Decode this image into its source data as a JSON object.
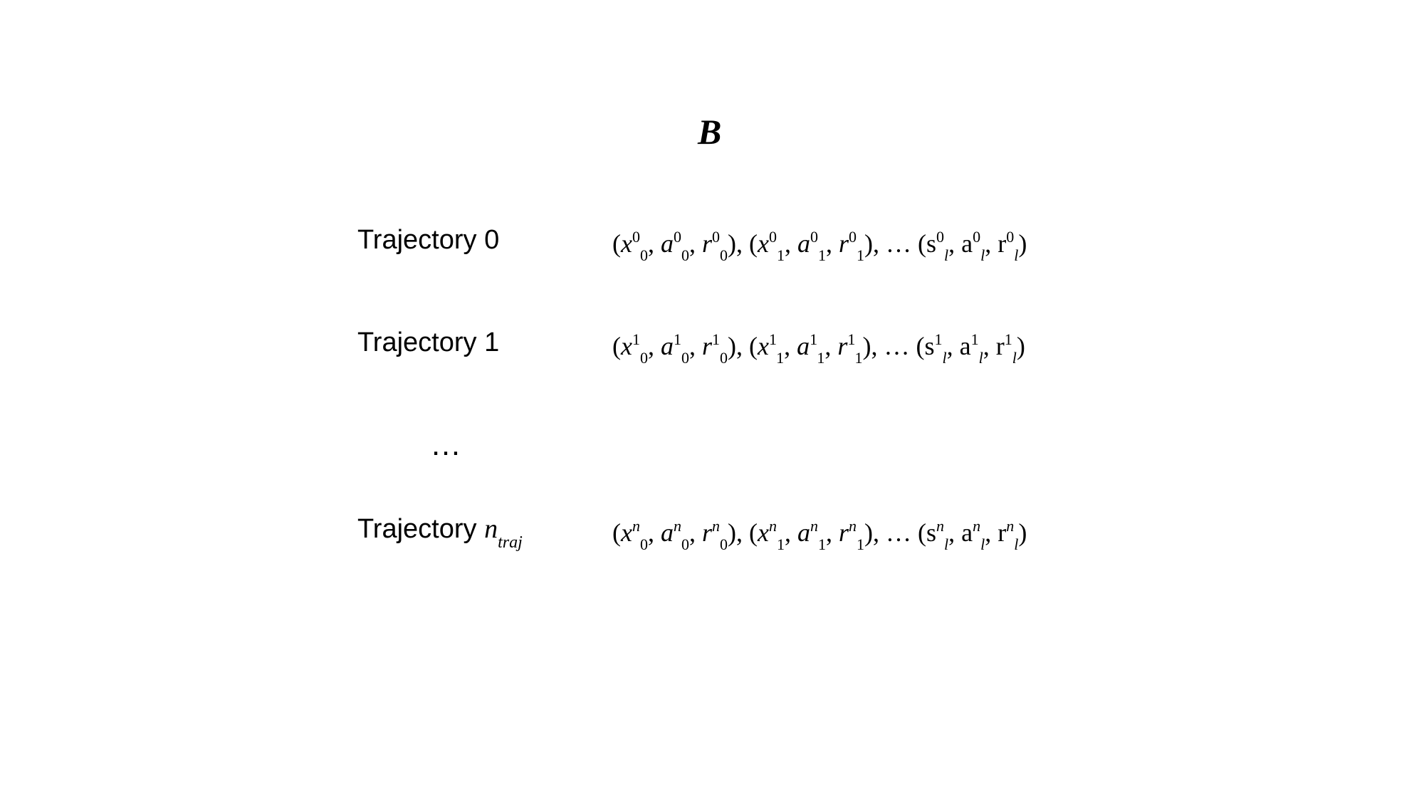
{
  "title": "B",
  "rows": [
    {
      "label": "Trajectory 0",
      "sup": "0",
      "sup_italic": false
    },
    {
      "label": "Trajectory 1",
      "sup": "1",
      "sup_italic": false
    },
    {
      "label": "Trajectory ",
      "label_var": "n",
      "label_sub": "traj",
      "sup": "n",
      "sup_italic": true
    }
  ],
  "ellipsis": "…",
  "symbols": {
    "x": "x",
    "a": "a",
    "r": "r",
    "s": "s",
    "a_upright": "a",
    "r_upright": "r"
  },
  "subscripts": {
    "zero": "0",
    "one": "1",
    "last": "l"
  },
  "punctuation": {
    "open": "(",
    "close": ")",
    "comma": ", ",
    "tuple_sep": "),  (",
    "dots": "), … ("
  }
}
